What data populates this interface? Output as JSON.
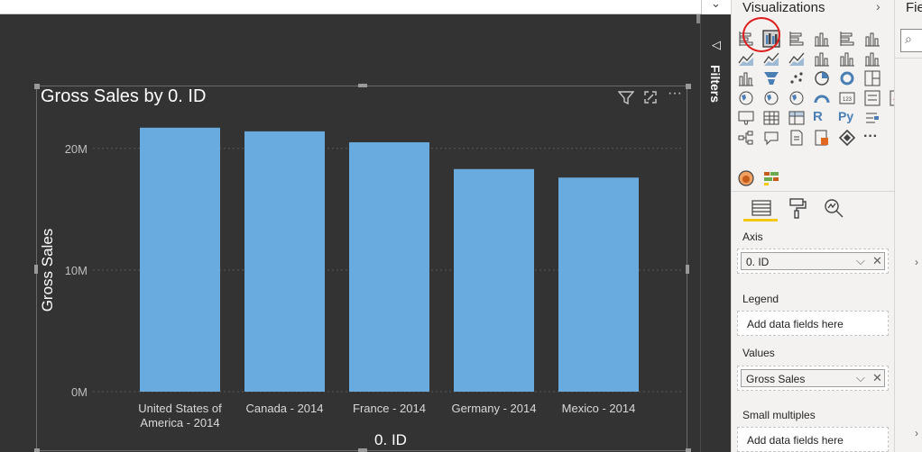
{
  "canvas": {
    "visual": {
      "title": "Gross Sales by 0. ID",
      "icons": [
        "filter-icon",
        "focus-mode-icon",
        "more-options-icon"
      ]
    }
  },
  "chart_data": {
    "type": "bar",
    "title": "Gross Sales by 0. ID",
    "xlabel": "0. ID",
    "ylabel": "Gross Sales",
    "categories": [
      "United States of America - 2014",
      "Canada - 2014",
      "France - 2014",
      "Germany - 2014",
      "Mexico - 2014"
    ],
    "category_lines": [
      [
        "United States of",
        "America - 2014"
      ],
      [
        "Canada - 2014"
      ],
      [
        "France - 2014"
      ],
      [
        "Germany - 2014"
      ],
      [
        "Mexico - 2014"
      ]
    ],
    "values": [
      21700000,
      21400000,
      20500000,
      18300000,
      17600000
    ],
    "yticks": [
      {
        "value": 0,
        "label": "0M"
      },
      {
        "value": 10000000,
        "label": "10M"
      },
      {
        "value": 20000000,
        "label": "20M"
      }
    ],
    "ylim": [
      0,
      24500000
    ],
    "grid": true,
    "bar_color": "#6aabdf"
  },
  "filters_pane": {
    "label": "Filters"
  },
  "visualizations": {
    "title": "Visualizations",
    "selected_icon": "clustered-column-chart-icon",
    "tabs": [
      "fields-tab-icon",
      "format-tab-icon",
      "analytics-tab-icon"
    ],
    "wells": {
      "axis": {
        "label": "Axis",
        "value": "0. ID"
      },
      "legend": {
        "label": "Legend",
        "placeholder": "Add data fields here"
      },
      "values": {
        "label": "Values",
        "value": "Gross Sales"
      },
      "small_multiples": {
        "label": "Small multiples",
        "placeholder": "Add data fields here"
      }
    }
  },
  "fields_pane": {
    "title": "Fie"
  },
  "colors": {
    "accent": "#f2c811",
    "selection": "#e01b1b",
    "canvas": "#333333"
  }
}
